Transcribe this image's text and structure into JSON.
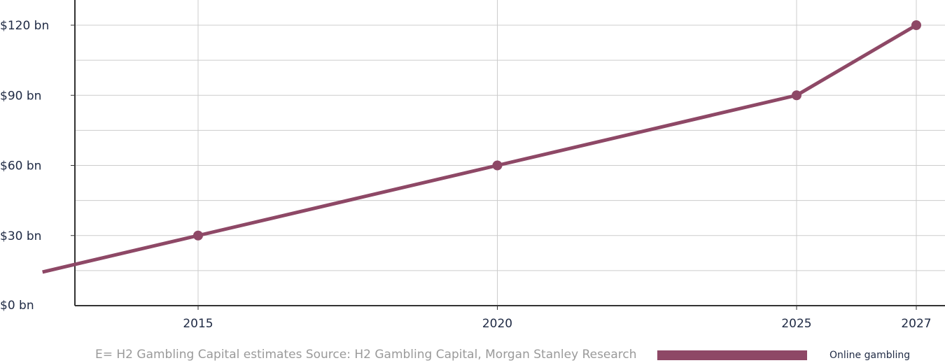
{
  "chart_data": {
    "type": "line",
    "x": [
      2015,
      2020,
      2025,
      2027
    ],
    "series": [
      {
        "name": "Online gambling",
        "values": [
          30,
          60,
          90,
          120
        ],
        "color": "#8e4866"
      }
    ],
    "y_tick_labels": [
      "$0 bn",
      "$30 bn",
      "$60 bn",
      "$90 bn",
      "$120 bn"
    ],
    "y_tick_values": [
      0,
      30,
      60,
      90,
      120
    ],
    "x_tick_labels": [
      "2015",
      "2020",
      "2025",
      "2027"
    ],
    "x_tick_values": [
      2015,
      2020,
      2025,
      2027
    ],
    "xlim": [
      2012.4,
      2027.6
    ],
    "ylim": [
      0,
      130
    ],
    "line_start": {
      "x": 2012.4,
      "y": 14.4
    },
    "grid": true,
    "legend_placement": "bottom-right",
    "source_note": "E= H2 Gambling Capital estimates Source: H2 Gambling Capital, Morgan Stanley Research",
    "title": "",
    "xlabel": "",
    "ylabel": ""
  },
  "colors": {
    "series": "#8e4866",
    "grid": "#cccccc",
    "axis": "#333333",
    "text": "#1f2a44",
    "source_text": "#9a9a9a"
  }
}
